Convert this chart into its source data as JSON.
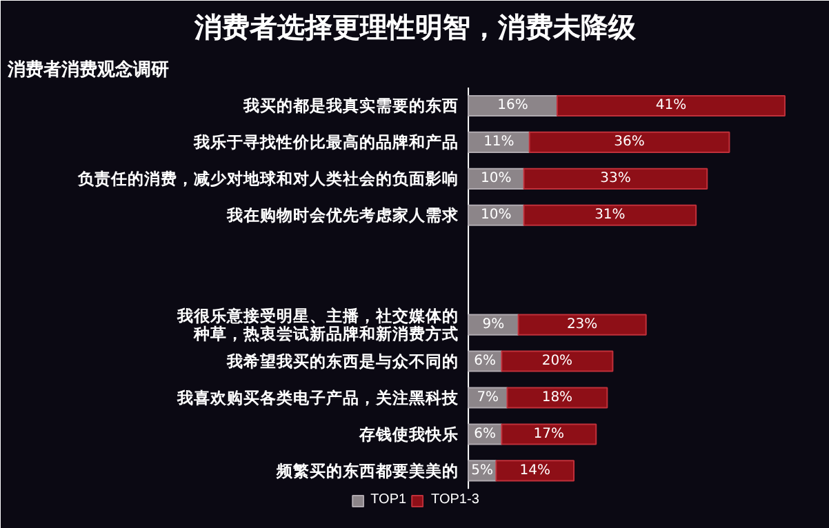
{
  "chart_data": {
    "type": "bar",
    "orientation": "horizontal",
    "stacked": true,
    "title": "消费者选择更理性明智，消费未降级",
    "subtitle": "消费者消费观念调研",
    "categories": [
      "我买的都是我真实需要的东西",
      "我乐于寻找性价比最高的品牌和产品",
      "负责任的消费，减少对地球和对人类社会的负面影响",
      "我在购物时会优先考虑家人需求",
      null,
      null,
      "我很乐意接受明星、主播，社交媒体的种草，热衷尝试新品牌和新消费方式",
      "我希望我买的东西是与众不同的",
      "我喜欢购买各类电子产品，关注黑科技",
      "存钱使我快乐",
      "频繁买的东西都要美美的"
    ],
    "series": [
      {
        "name": "TOP1",
        "color": "#8c8589",
        "values": [
          16,
          11,
          10,
          10,
          null,
          null,
          9,
          6,
          7,
          6,
          5
        ],
        "value_labels": [
          "16%",
          "11%",
          "10%",
          "10%",
          null,
          null,
          "9%",
          "6%",
          "7%",
          "6%",
          "5%"
        ]
      },
      {
        "name": "TOP1-3",
        "color": "#8e0f17",
        "values": [
          41,
          36,
          33,
          31,
          null,
          null,
          23,
          20,
          18,
          17,
          14
        ],
        "value_labels": [
          "41%",
          "36%",
          "33%",
          "31%",
          null,
          null,
          "23%",
          "20%",
          "18%",
          "17%",
          "14%"
        ]
      }
    ],
    "legend": "bottom",
    "grid": false
  }
}
